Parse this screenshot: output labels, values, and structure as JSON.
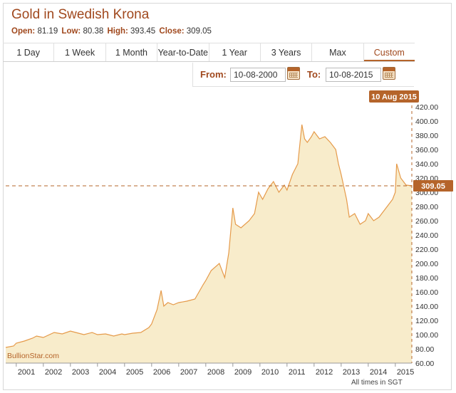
{
  "header": {
    "title": "Gold in Swedish Krona",
    "open_label": "Open:",
    "open_value": "81.19",
    "low_label": "Low:",
    "low_value": "80.38",
    "high_label": "High:",
    "high_value": "393.45",
    "close_label": "Close:",
    "close_value": "309.05"
  },
  "tabs": [
    {
      "label": "1 Day",
      "active": false
    },
    {
      "label": "1 Week",
      "active": false
    },
    {
      "label": "1 Month",
      "active": false
    },
    {
      "label": "Year-to-Date",
      "active": false
    },
    {
      "label": "1 Year",
      "active": false
    },
    {
      "label": "3 Years",
      "active": false
    },
    {
      "label": "Max",
      "active": false
    },
    {
      "label": "Custom",
      "active": true
    }
  ],
  "range": {
    "from_label": "From:",
    "from_value": "10-08-2000",
    "to_label": "To:",
    "to_value": "10-08-2015"
  },
  "colors": {
    "accent": "#a0481d",
    "line": "#e59a4a",
    "area": "#f8eccb",
    "marker": "#b5642a"
  },
  "footer": {
    "watermark": "BullionStar.com",
    "timezone": "All times in SGT"
  },
  "crosshair": {
    "date_label": "10 Aug 2015",
    "value_label": "309.05",
    "value": 309.05
  },
  "chart_data": {
    "type": "area",
    "title": "Gold in Swedish Krona",
    "xlabel": "",
    "ylabel": "",
    "ylim": [
      60,
      420
    ],
    "xlim": [
      2000.61,
      2015.61
    ],
    "yticks": [
      60,
      80,
      100,
      120,
      140,
      160,
      180,
      200,
      220,
      240,
      260,
      280,
      300,
      320,
      340,
      360,
      380,
      400,
      420
    ],
    "xticks": [
      2001,
      2002,
      2003,
      2004,
      2005,
      2006,
      2007,
      2008,
      2009,
      2010,
      2011,
      2012,
      2013,
      2014,
      2015
    ],
    "grid": false,
    "series": [
      {
        "x": [
          2000.61,
          2000.9,
          2001.0,
          2001.3,
          2001.6,
          2001.75,
          2002.0,
          2002.4,
          2002.7,
          2003.0,
          2003.2,
          2003.5,
          2003.8,
          2004.0,
          2004.3,
          2004.6,
          2004.9,
          2005.0,
          2005.3,
          2005.6,
          2005.9,
          2006.0,
          2006.2,
          2006.35,
          2006.45,
          2006.6,
          2006.8,
          2007.0,
          2007.3,
          2007.6,
          2007.9,
          2008.0,
          2008.2,
          2008.5,
          2008.7,
          2008.85,
          2009.0,
          2009.1,
          2009.3,
          2009.6,
          2009.8,
          2009.95,
          2010.1,
          2010.3,
          2010.5,
          2010.7,
          2010.9,
          2011.0,
          2011.2,
          2011.4,
          2011.55,
          2011.65,
          2011.75,
          2011.9,
          2012.0,
          2012.2,
          2012.4,
          2012.6,
          2012.8,
          2012.9,
          2013.0,
          2013.2,
          2013.3,
          2013.5,
          2013.7,
          2013.9,
          2014.0,
          2014.2,
          2014.4,
          2014.6,
          2014.8,
          2014.9,
          2015.0,
          2015.05,
          2015.2,
          2015.4,
          2015.61
        ],
        "values": [
          82,
          84,
          88,
          91,
          95,
          98,
          96,
          103,
          101,
          105,
          103,
          100,
          103,
          100,
          101,
          98,
          101,
          100,
          102,
          103,
          110,
          115,
          135,
          162,
          140,
          145,
          142,
          145,
          147,
          150,
          170,
          176,
          190,
          200,
          180,
          215,
          278,
          255,
          250,
          260,
          270,
          300,
          290,
          305,
          315,
          300,
          310,
          303,
          325,
          340,
          395,
          375,
          370,
          378,
          385,
          375,
          378,
          370,
          360,
          340,
          325,
          290,
          265,
          270,
          255,
          260,
          270,
          260,
          265,
          275,
          285,
          290,
          300,
          340,
          320,
          310,
          309.05
        ]
      }
    ]
  }
}
